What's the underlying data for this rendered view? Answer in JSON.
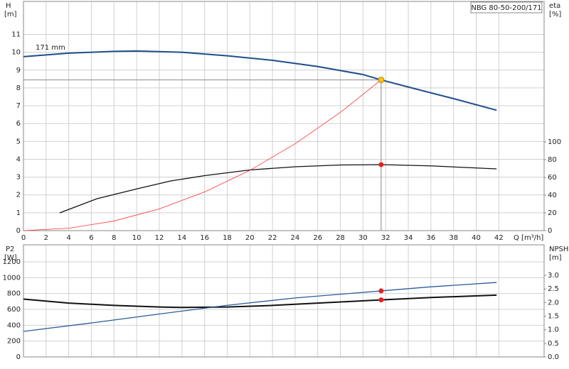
{
  "chart_data": [
    {
      "type": "line",
      "title": "NBG 80-50-200/171",
      "ylabel": "H",
      "yunit": "[m]",
      "y2label": "eta",
      "y2unit": "[%]",
      "xlabel": "Q [m³/h]",
      "xlim": [
        0,
        46
      ],
      "xticks": [
        0,
        2,
        4,
        6,
        8,
        10,
        12,
        14,
        16,
        18,
        20,
        22,
        24,
        26,
        28,
        30,
        32,
        34,
        36,
        38,
        40,
        42
      ],
      "ylim": [
        0,
        12.85
      ],
      "yticks": [
        0,
        1,
        2,
        3,
        4,
        5,
        6,
        7,
        8,
        9,
        10,
        11
      ],
      "y2lim": [
        0,
        258.4
      ],
      "y2ticks": [
        0,
        20,
        40,
        60,
        80,
        100
      ],
      "grid": true,
      "annotation": "171 mm",
      "series": [
        {
          "color": "#1f4e8c",
          "width": 2,
          "x": [
            0,
            4,
            8,
            10,
            14,
            18,
            22,
            26,
            30,
            31.6,
            34,
            38,
            41.8
          ],
          "values": [
            9.75,
            9.95,
            10.05,
            10.07,
            10.0,
            9.8,
            9.55,
            9.2,
            8.75,
            8.45,
            8.05,
            7.4,
            6.75
          ]
        },
        {
          "color": "#111111",
          "width": 1.3,
          "axis": "y2",
          "x": [
            3.2,
            6.5,
            10,
            13,
            16,
            20,
            24,
            28,
            31.6,
            36,
            41.8
          ],
          "values": [
            20,
            36,
            47,
            56,
            62,
            68.4,
            72,
            74,
            74.4,
            73,
            69.6
          ]
        },
        {
          "color": "#ff3030",
          "width": 0.8,
          "x": [
            0,
            4,
            8,
            12,
            16,
            20,
            24,
            28,
            31.6
          ],
          "values": [
            0,
            0.135,
            0.54,
            1.22,
            2.17,
            3.38,
            4.87,
            6.63,
            8.45
          ]
        }
      ],
      "operating_point": {
        "x": 31.6,
        "y": 8.45,
        "color": "#f5c518"
      },
      "markers": [
        {
          "x": 31.6,
          "y": 74.4,
          "axis": "y2",
          "color": "#e82020"
        }
      ]
    },
    {
      "type": "line",
      "ylabel": "P2",
      "yunit": "[W]",
      "y2label": "NPSH",
      "y2unit": "[m]",
      "xlim": [
        0,
        46
      ],
      "ylim": [
        0,
        1415
      ],
      "yticks": [
        0,
        200,
        400,
        600,
        800,
        1000,
        1200
      ],
      "y2lim": [
        0,
        4.125
      ],
      "y2ticks": [
        {
          "value": 0,
          "label": "0.0"
        },
        0.5,
        {
          "value": 1,
          "label": "1.0"
        },
        1.5,
        {
          "value": 2,
          "label": "2.0"
        },
        2.5,
        {
          "value": 3,
          "label": "3.0"
        }
      ],
      "grid": true,
      "series": [
        {
          "color": "#111111",
          "width": 2,
          "x": [
            0,
            4,
            8,
            12,
            14,
            18,
            22,
            26,
            31.6,
            36,
            41.8
          ],
          "values": [
            730,
            680,
            650,
            630,
            625,
            630,
            650,
            680,
            720,
            750,
            780
          ]
        },
        {
          "color": "#2a5c9a",
          "width": 1.3,
          "axis": "y2",
          "x": [
            0,
            6,
            12,
            18,
            24,
            31.6,
            36,
            41.8
          ],
          "values": [
            0.94,
            1.25,
            1.58,
            1.9,
            2.17,
            2.43,
            2.58,
            2.74
          ]
        }
      ],
      "markers": [
        {
          "x": 31.6,
          "y": 720,
          "color": "#e82020"
        },
        {
          "x": 31.6,
          "y": 2.43,
          "axis": "y2",
          "color": "#e82020"
        }
      ]
    }
  ]
}
